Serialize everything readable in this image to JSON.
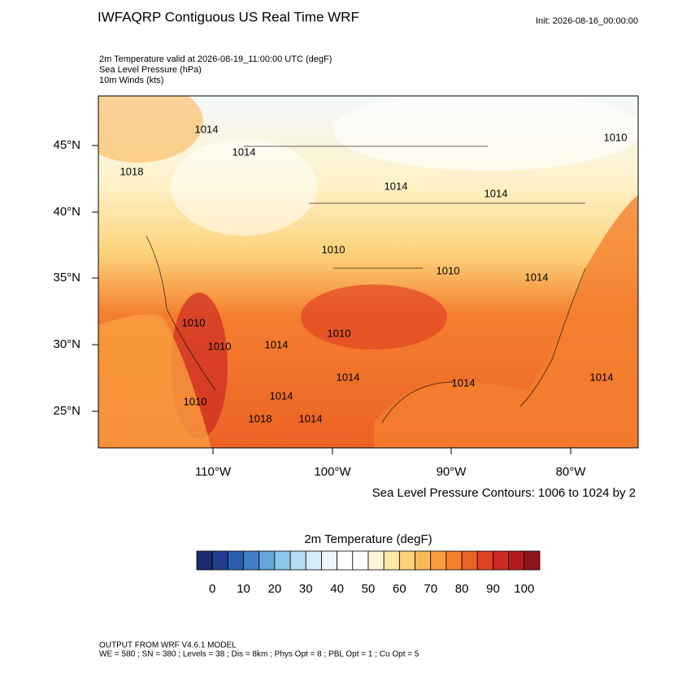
{
  "header": {
    "title": "IWFAQRP Contiguous US Real Time WRF",
    "init": "Init: 2026-08-16_00:00:00"
  },
  "subtitles": [
    "2m Temperature valid at 2026-08-19_11:00:00 UTC   (degF)",
    "Sea Level Pressure   (hPa)",
    "10m Winds   (kts)"
  ],
  "map": {
    "lat_labels": [
      "45°N",
      "40°N",
      "35°N",
      "30°N",
      "25°N"
    ],
    "lon_labels": [
      "110°W",
      "100°W",
      "90°W",
      "80°W"
    ],
    "contour_labels": [
      "1014",
      "1014",
      "1018",
      "1014",
      "1014",
      "1010",
      "1010",
      "1010",
      "1014",
      "1010",
      "1010",
      "1010",
      "1014",
      "1014",
      "1014",
      "1014",
      "1010",
      "1014",
      "1018",
      "1014"
    ],
    "contour_note": "Sea Level Pressure Contours: 1006 to 1024 by 2"
  },
  "colorbar": {
    "title": "2m Temperature  (degF)",
    "colors": [
      "#1a2a6c",
      "#1f3f8f",
      "#2a5fb0",
      "#3f7fc8",
      "#64a5da",
      "#8ec6ea",
      "#b5dcf3",
      "#d6ecf8",
      "#eef6fb",
      "#ffffff",
      "#ffffff",
      "#fff5d6",
      "#ffe8a8",
      "#fdd27a",
      "#fcb856",
      "#f99d3f",
      "#f4802f",
      "#ec6126",
      "#df4323",
      "#cc2a22",
      "#b31b1f",
      "#8f141a"
    ],
    "labels": [
      0,
      10,
      20,
      30,
      40,
      50,
      60,
      70,
      80,
      90,
      100
    ]
  },
  "footer": [
    "OUTPUT FROM WRF V4.6.1 MODEL",
    "WE = 580 ; SN = 380 ; Levels = 38 ; Dis = 8km ; Phys Opt = 8 ; PBL Opt = 1 ; Cu Opt = 5"
  ]
}
